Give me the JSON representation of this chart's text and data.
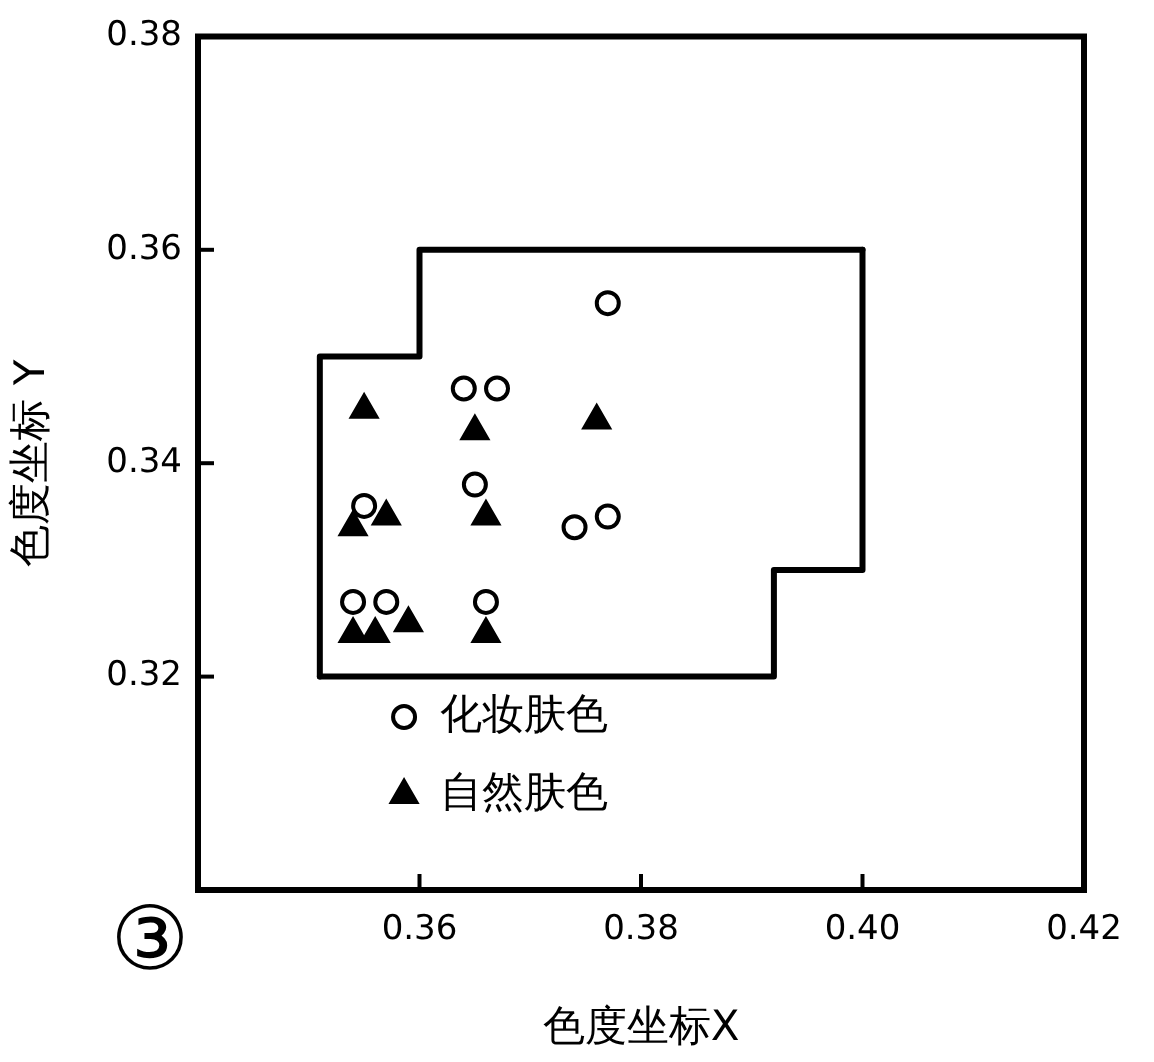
{
  "chart_data": {
    "type": "scatter",
    "xlabel": "色度坐标X",
    "ylabel": "色度坐标 Y",
    "annotations": [
      "③"
    ],
    "xlim": [
      0.34,
      0.42
    ],
    "ylim": [
      0.3,
      0.38
    ],
    "xticks": [
      0.36,
      0.38,
      {
        "value": 0.4,
        "label": "0.40"
      },
      0.42
    ],
    "yticks": [
      0.32,
      0.34,
      0.36,
      0.38
    ],
    "grid": false,
    "legend": "bottom left",
    "series": [
      {
        "name": "化妆肤色",
        "marker": "circle",
        "color": "#000000",
        "x": [
          0.377,
          0.364,
          0.367,
          0.355,
          0.365,
          0.374,
          0.377,
          0.354,
          0.357,
          0.366
        ],
        "values": [
          0.355,
          0.347,
          0.347,
          0.336,
          0.338,
          0.334,
          0.335,
          0.327,
          0.327,
          0.327
        ]
      },
      {
        "name": "自然肤色",
        "marker": "triangle",
        "color": "#000000",
        "x": [
          0.355,
          0.365,
          0.376,
          0.354,
          0.357,
          0.366,
          0.354,
          0.356,
          0.359,
          0.366
        ],
        "values": [
          0.345,
          0.343,
          0.344,
          0.334,
          0.335,
          0.335,
          0.324,
          0.324,
          0.325,
          0.324
        ]
      },
      {
        "type": "line",
        "marker": "none",
        "line_style": "solid",
        "color": "#000000",
        "x": [
          0.351,
          0.351,
          0.36,
          0.36,
          0.4
        ],
        "values": [
          0.32,
          0.35,
          0.35,
          0.36,
          0.36
        ]
      },
      {
        "type": "line",
        "marker": "none",
        "line_style": "solid",
        "color": "#000000",
        "x": [
          0.351,
          0.392,
          0.392,
          0.4,
          0.4
        ],
        "values": [
          0.32,
          0.32,
          0.33,
          0.33,
          0.36
        ]
      }
    ]
  }
}
